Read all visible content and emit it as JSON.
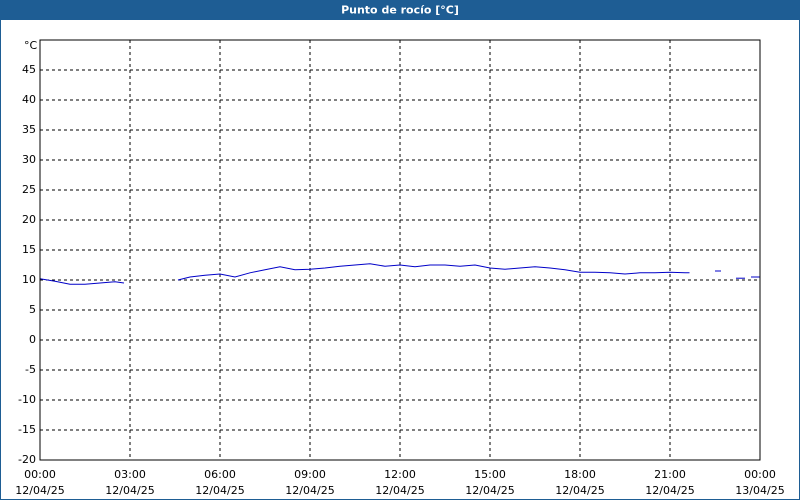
{
  "chart_data": {
    "type": "line",
    "title": "Punto de rocío [°C]",
    "y_unit": "°C",
    "x": [
      0,
      0.5,
      1,
      1.5,
      2,
      2.5,
      2.8,
      3.5,
      4.6,
      5,
      5.5,
      6,
      6.5,
      7,
      7.5,
      8,
      8.5,
      9,
      9.5,
      10,
      10.5,
      11,
      11.5,
      12,
      12.5,
      13,
      13.5,
      14,
      14.5,
      15,
      15.5,
      16,
      16.5,
      17,
      17.5,
      18,
      18.5,
      19,
      19.5,
      20,
      20.5,
      21,
      21.5,
      21.65,
      22.1,
      22.5,
      22.7,
      23,
      23.2,
      23.5,
      23.6,
      23.7,
      24
    ],
    "series": [
      {
        "name": "Punto de rocío",
        "color": "#0000c8",
        "values": [
          10.2,
          9.8,
          9.3,
          9.3,
          9.5,
          9.7,
          9.5,
          null,
          10.0,
          10.5,
          10.8,
          11,
          10.5,
          11.2,
          11.7,
          12.2,
          11.7,
          11.8,
          12,
          12.3,
          12.5,
          12.7,
          12.3,
          12.5,
          12.2,
          12.5,
          12.5,
          12.3,
          12.5,
          12,
          11.8,
          12,
          12.2,
          12,
          11.7,
          11.3,
          11.3,
          11.2,
          11,
          11.2,
          11.2,
          11.3,
          11.2,
          11.2,
          null,
          11.5,
          11.5,
          null,
          10.3,
          10.3,
          null,
          10.5,
          10.5
        ]
      }
    ],
    "xlim": [
      0,
      24
    ],
    "xticks": [
      {
        "value": 0,
        "label": "00:00"
      },
      {
        "value": 3,
        "label": "03:00"
      },
      {
        "value": 6,
        "label": "06:00"
      },
      {
        "value": 9,
        "label": "09:00"
      },
      {
        "value": 12,
        "label": "12:00"
      },
      {
        "value": 15,
        "label": "15:00"
      },
      {
        "value": 18,
        "label": "18:00"
      },
      {
        "value": 21,
        "label": "21:00"
      },
      {
        "value": 24,
        "label": "00:00"
      }
    ],
    "xtick_dates": [
      "12/04/25",
      "12/04/25",
      "12/04/25",
      "12/04/25",
      "12/04/25",
      "12/04/25",
      "12/04/25",
      "12/04/25",
      "13/04/25"
    ],
    "ylim": [
      -20,
      50
    ],
    "yticks": [
      -20,
      -15,
      -10,
      -5,
      0,
      5,
      10,
      15,
      20,
      25,
      30,
      35,
      40,
      45
    ],
    "grid": true
  }
}
